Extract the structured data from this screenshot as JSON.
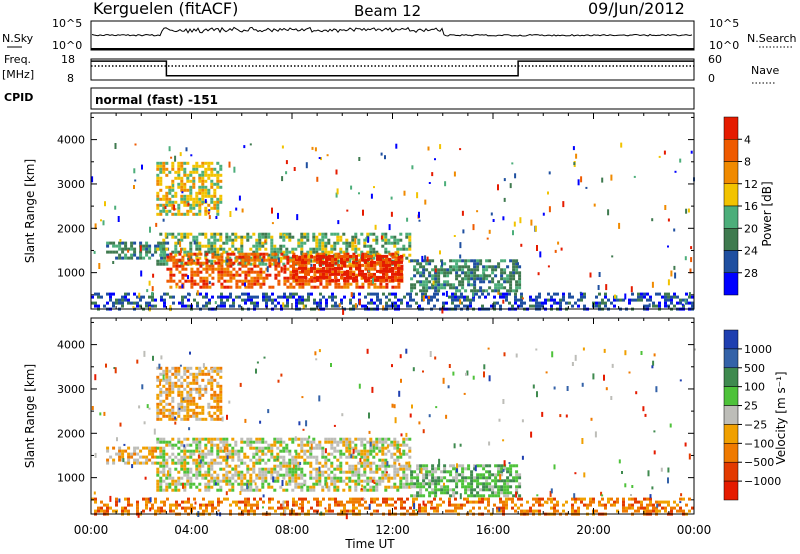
{
  "header": {
    "station": "Kerguelen (fitACF)",
    "beam": "Beam 12",
    "date": "09/Jun/2012"
  },
  "noise_panel": {
    "left_label": "N.Sky",
    "right_label": "N.Search",
    "left_ticks": [
      "10^5",
      "10^0"
    ],
    "right_ticks": [
      "10^5",
      "10^0"
    ]
  },
  "freq_panel": {
    "left_label_1": "Freq.",
    "left_label_2": "[MHz]",
    "right_label": "Nave",
    "left_ticks": [
      "18",
      "8"
    ],
    "right_ticks": [
      "60",
      "0"
    ]
  },
  "cpid": {
    "label": "CPID",
    "value": "normal (fast) -151"
  },
  "colors": {
    "power_scale": [
      "#0000ff",
      "#1f4fa0",
      "#3f7a4f",
      "#4cae7a",
      "#f2c300",
      "#f08a00",
      "#ef5a00",
      "#e51b00"
    ],
    "velocity_scale": [
      "#1f3fb0",
      "#3462a8",
      "#3f8a4f",
      "#4ec23a",
      "#bdbdb8",
      "#f0a000",
      "#ef7a00",
      "#e33a00",
      "#e51b00"
    ]
  },
  "chart_data": [
    {
      "type": "heatmap",
      "name": "power",
      "ylabel": "Slant Range [km]",
      "xlabel": "",
      "ylim": [
        180,
        4600
      ],
      "y_ticks": [
        1000,
        2000,
        3000,
        4000
      ],
      "y_tick_labels": [
        "1000",
        "2000",
        "3000",
        "4000"
      ],
      "x_ticks": [
        0,
        4,
        8,
        12,
        16,
        20,
        24
      ],
      "colorbar": {
        "label": "Power [dB]",
        "levels": [
          0,
          4,
          8,
          12,
          16,
          20,
          24,
          28,
          32
        ],
        "tick_labels": [
          "4",
          "8",
          "12",
          "16",
          "20",
          "24",
          "28"
        ]
      },
      "regions": [
        {
          "t0": 0.6,
          "t1": 3.0,
          "r0": 1350,
          "r1": 1700,
          "level": 2
        },
        {
          "t0": 2.6,
          "t1": 12.7,
          "r0": 1200,
          "r1": 1900,
          "level": 3
        },
        {
          "t0": 3.0,
          "t1": 12.4,
          "r0": 700,
          "r1": 1450,
          "level": 6
        },
        {
          "t0": 8.0,
          "t1": 12.3,
          "r0": 800,
          "r1": 1400,
          "level": 7
        },
        {
          "t0": 12.7,
          "t1": 17.0,
          "r0": 600,
          "r1": 1300,
          "level": 2
        },
        {
          "t0": 2.6,
          "t1": 5.2,
          "r0": 2300,
          "r1": 3500,
          "level": 4
        },
        {
          "t0": 0.0,
          "t1": 24.0,
          "r0": 200,
          "r1": 550,
          "level": 1
        }
      ]
    },
    {
      "type": "heatmap",
      "name": "velocity",
      "ylabel": "Slant Range [km]",
      "xlabel": "Time UT",
      "ylim": [
        180,
        4600
      ],
      "y_ticks": [
        1000,
        2000,
        3000,
        4000
      ],
      "y_tick_labels": [
        "1000",
        "2000",
        "3000",
        "4000"
      ],
      "x_ticks": [
        0,
        4,
        8,
        12,
        16,
        20,
        24
      ],
      "x_tick_labels": [
        "00:00",
        "04:00",
        "08:00",
        "12:00",
        "16:00",
        "20:00",
        "00:00"
      ],
      "colorbar": {
        "label": "Velocity [m s⁻¹]",
        "levels": [
          -2000,
          -1000,
          -500,
          -100,
          -25,
          25,
          100,
          500,
          1000,
          2000
        ],
        "tick_labels": [
          "1000",
          "500",
          "100",
          "25",
          "−25",
          "−100",
          "−500",
          "−1000"
        ]
      },
      "regions": [
        {
          "t0": 0.6,
          "t1": 2.6,
          "r0": 1350,
          "r1": 1700,
          "level": 5
        },
        {
          "t0": 2.6,
          "t1": 12.7,
          "r0": 700,
          "r1": 1900,
          "level": 4
        },
        {
          "t0": 12.7,
          "t1": 17.0,
          "r0": 600,
          "r1": 1300,
          "level": 3
        },
        {
          "t0": 2.6,
          "t1": 5.2,
          "r0": 2300,
          "r1": 3500,
          "level": 5
        },
        {
          "t0": 0.0,
          "t1": 24.0,
          "r0": 200,
          "r1": 550,
          "level": 6
        }
      ]
    },
    {
      "type": "line",
      "name": "frequency",
      "ylim": [
        8,
        18
      ],
      "x": [
        0,
        3.0,
        3.0,
        17.0,
        17.0,
        24
      ],
      "y": [
        17,
        17,
        10,
        10,
        17,
        17
      ]
    },
    {
      "type": "line",
      "name": "nave",
      "ylim": [
        0,
        60
      ],
      "x": [
        0,
        24
      ],
      "y": [
        40,
        40
      ]
    }
  ]
}
